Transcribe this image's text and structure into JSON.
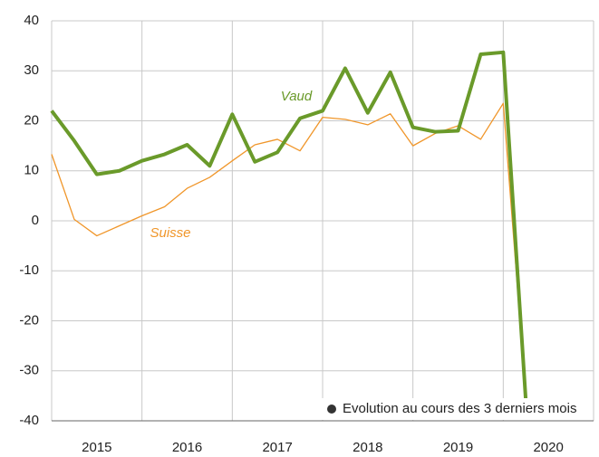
{
  "chart_data": {
    "type": "line",
    "x": [
      2015,
      2015.25,
      2015.5,
      2015.75,
      2016,
      2016.25,
      2016.5,
      2016.75,
      2017,
      2017.25,
      2017.5,
      2017.75,
      2018,
      2018.25,
      2018.5,
      2018.75,
      2019,
      2019.25,
      2019.5,
      2019.75,
      2020,
      2020.25
    ],
    "series": [
      {
        "name": "Suisse",
        "color": "#f0962a",
        "values": [
          13.3,
          0.3,
          -3,
          -1,
          1,
          2.8,
          6.5,
          8.7,
          12,
          15.2,
          16.3,
          14,
          20.7,
          20.3,
          19.2,
          21.4,
          15,
          17.5,
          19,
          16.3,
          23.5,
          -35
        ]
      },
      {
        "name": "Vaud",
        "color": "#6a9a2a",
        "values": [
          22,
          16,
          9.3,
          10,
          12,
          13.3,
          15.2,
          11,
          21.3,
          11.8,
          13.7,
          20.5,
          22,
          30.5,
          21.6,
          29.7,
          18.7,
          17.8,
          18,
          33.3,
          33.7,
          -36
        ]
      }
    ],
    "legend": "Evolution au cours des 3 derniers mois",
    "xlim": [
      2015,
      2021
    ],
    "xticks": [
      {
        "value": 2015.5,
        "label": "2015"
      },
      {
        "value": 2016.5,
        "label": "2016"
      },
      {
        "value": 2017.5,
        "label": "2017"
      },
      {
        "value": 2018.5,
        "label": "2018"
      },
      {
        "value": 2019.5,
        "label": "2019"
      },
      {
        "value": 2020.5,
        "label": "2020"
      }
    ],
    "ylim": [
      -40,
      40
    ],
    "yticks": [
      -40,
      -30,
      -20,
      -10,
      0,
      10,
      20,
      30,
      40
    ],
    "grid": true
  }
}
